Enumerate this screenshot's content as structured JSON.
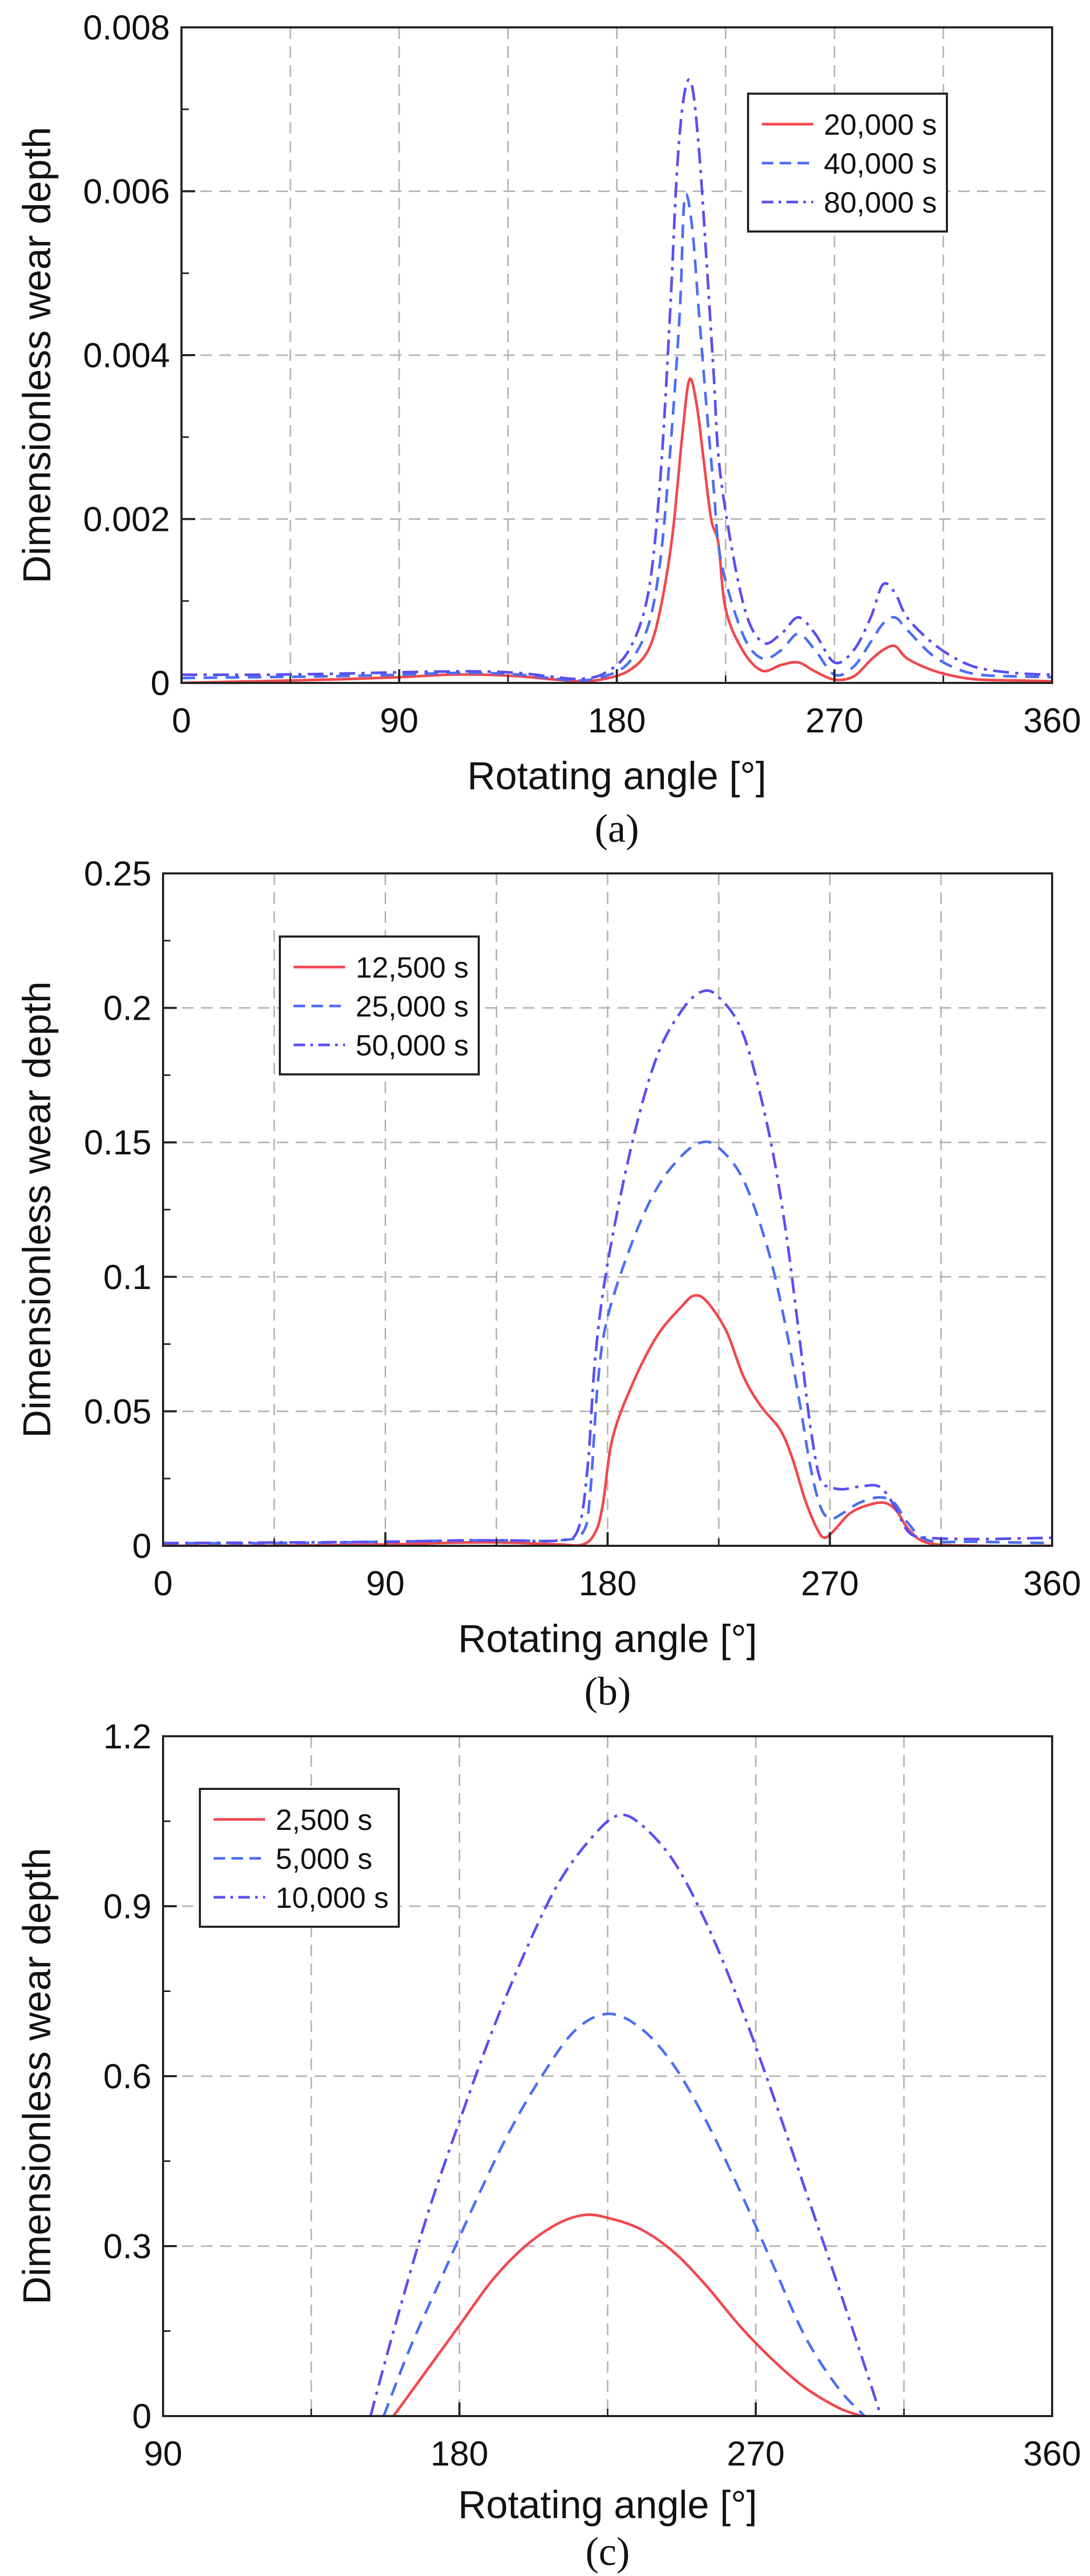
{
  "colors": {
    "series_red": "#f0484e",
    "series_blue": "#4b6ef2",
    "series_violet": "#5a4ef0",
    "grid": "#b5b5b5",
    "axis": "#222222",
    "text": "#111111"
  },
  "chart_data": [
    {
      "type": "line",
      "panel_label": "(a)",
      "xlabel": "Rotating angle [°]",
      "ylabel": "Dimensionless wear depth",
      "xlim": [
        0,
        360
      ],
      "ylim": [
        0,
        0.008
      ],
      "xticks": [
        0,
        90,
        180,
        270,
        360
      ],
      "xtick_labels": [
        "0",
        "90",
        "180",
        "270",
        "360"
      ],
      "yticks": [
        0,
        0.002,
        0.004,
        0.006,
        0.008
      ],
      "ytick_labels": [
        "0",
        "0.002",
        "0.004",
        "0.006",
        "0.008"
      ],
      "xgrid": [
        45,
        90,
        135,
        180,
        225,
        270,
        315
      ],
      "legend_position": "top-right",
      "series": [
        {
          "name": "20,000 s",
          "style": "solid",
          "color": "#f0484e",
          "x": [
            0,
            30,
            60,
            90,
            110,
            125,
            140,
            155,
            165,
            175,
            185,
            193,
            198,
            203,
            207,
            210,
            213,
            216,
            219,
            222,
            225,
            232,
            240,
            248,
            255,
            262,
            270,
            278,
            285,
            290,
            295,
            300,
            310,
            320,
            330,
            345,
            360
          ],
          "y": [
            0,
            2e-05,
            4e-05,
            7e-05,
            0.0001,
            0.0001,
            8e-05,
            4e-05,
            2e-05,
            5e-05,
            0.00015,
            0.0004,
            0.0009,
            0.0018,
            0.003,
            0.0037,
            0.0034,
            0.0027,
            0.002,
            0.0017,
            0.0009,
            0.0004,
            0.00015,
            0.00022,
            0.00025,
            0.00014,
            4e-05,
            8e-05,
            0.00028,
            0.0004,
            0.00045,
            0.0003,
            0.00016,
            8e-05,
            4e-05,
            3e-05,
            2e-05
          ]
        },
        {
          "name": "40,000 s",
          "style": "dashed",
          "color": "#4b6ef2",
          "x": [
            0,
            30,
            60,
            90,
            110,
            125,
            140,
            155,
            165,
            175,
            185,
            193,
            198,
            202,
            206,
            208,
            211,
            214,
            217,
            220,
            223,
            232,
            240,
            248,
            255,
            262,
            270,
            278,
            285,
            290,
            295,
            300,
            310,
            320,
            330,
            345,
            360
          ],
          "y": [
            6e-05,
            7e-05,
            8e-05,
            0.0001,
            0.00012,
            0.00012,
            0.0001,
            5e-05,
            3e-05,
            8e-05,
            0.00025,
            0.0007,
            0.0015,
            0.0028,
            0.0045,
            0.0059,
            0.0056,
            0.0045,
            0.0034,
            0.0024,
            0.0015,
            0.0006,
            0.0003,
            0.0004,
            0.0006,
            0.0004,
            0.0001,
            0.0002,
            0.0005,
            0.00072,
            0.0008,
            0.00065,
            0.00035,
            0.00018,
            0.0001,
            8e-05,
            7e-05
          ]
        },
        {
          "name": "80,000 s",
          "style": "dashdot",
          "color": "#5a4ef0",
          "x": [
            0,
            30,
            60,
            90,
            110,
            125,
            140,
            155,
            165,
            175,
            185,
            193,
            198,
            202,
            205,
            208,
            211,
            214,
            217,
            220,
            223,
            232,
            240,
            248,
            255,
            262,
            270,
            278,
            285,
            290,
            295,
            300,
            310,
            320,
            330,
            345,
            360
          ],
          "y": [
            0.0001,
            0.0001,
            0.00011,
            0.00013,
            0.00014,
            0.00014,
            0.00012,
            7e-05,
            5e-05,
            0.00012,
            0.0004,
            0.0011,
            0.0025,
            0.0045,
            0.0063,
            0.0072,
            0.0073,
            0.0065,
            0.0052,
            0.0038,
            0.0025,
            0.001,
            0.0005,
            0.0006,
            0.0008,
            0.0006,
            0.00025,
            0.0004,
            0.0008,
            0.0012,
            0.0011,
            0.0008,
            0.0005,
            0.0003,
            0.00018,
            0.00012,
            0.0001
          ]
        }
      ]
    },
    {
      "type": "line",
      "panel_label": "(b)",
      "xlabel": "Rotating angle [°]",
      "ylabel": "Dimensionless wear depth",
      "xlim": [
        0,
        360
      ],
      "ylim": [
        0,
        0.25
      ],
      "xticks": [
        0,
        90,
        180,
        270,
        360
      ],
      "xtick_labels": [
        "0",
        "90",
        "180",
        "270",
        "360"
      ],
      "yticks": [
        0,
        0.05,
        0.1,
        0.15,
        0.2,
        0.25
      ],
      "ytick_labels": [
        "0",
        "0.05",
        "0.1",
        "0.15",
        "0.2",
        "0.25"
      ],
      "xgrid": [
        45,
        90,
        135,
        180,
        225,
        270,
        315
      ],
      "legend_position": "top-left",
      "series": [
        {
          "name": "12,500 s",
          "style": "solid",
          "color": "#f0484e",
          "x": [
            0,
            40,
            90,
            120,
            140,
            160,
            170,
            175,
            178,
            182,
            190,
            200,
            210,
            215,
            220,
            228,
            235,
            242,
            250,
            255,
            260,
            265,
            268,
            272,
            278,
            285,
            292,
            297,
            302,
            310,
            330,
            360
          ],
          "y": [
            0,
            0,
            0.0005,
            0.0012,
            0.0012,
            0.0005,
            0.0005,
            0.005,
            0.015,
            0.04,
            0.06,
            0.078,
            0.089,
            0.093,
            0.091,
            0.08,
            0.063,
            0.052,
            0.043,
            0.032,
            0.017,
            0.006,
            0.003,
            0.006,
            0.012,
            0.015,
            0.016,
            0.013,
            0.006,
            0.001,
            0,
            0
          ]
        },
        {
          "name": "25,000 s",
          "style": "dashed",
          "color": "#4b6ef2",
          "x": [
            0,
            40,
            90,
            120,
            140,
            160,
            170,
            173,
            176,
            180,
            190,
            200,
            210,
            218,
            225,
            235,
            245,
            252,
            258,
            262,
            266,
            270,
            275,
            282,
            290,
            296,
            302,
            310,
            330,
            360
          ],
          "y": [
            0.001,
            0.001,
            0.0015,
            0.002,
            0.002,
            0.002,
            0.005,
            0.02,
            0.06,
            0.085,
            0.113,
            0.133,
            0.145,
            0.15,
            0.148,
            0.136,
            0.11,
            0.082,
            0.052,
            0.03,
            0.015,
            0.01,
            0.012,
            0.016,
            0.018,
            0.016,
            0.008,
            0.002,
            0.0015,
            0.001
          ]
        },
        {
          "name": "50,000 s",
          "style": "dashdot",
          "color": "#5a4ef0",
          "x": [
            0,
            40,
            90,
            120,
            140,
            160,
            168,
            172,
            175,
            180,
            190,
            200,
            210,
            218,
            225,
            235,
            245,
            252,
            258,
            262,
            266,
            270,
            275,
            282,
            290,
            296,
            302,
            310,
            330,
            360
          ],
          "y": [
            0.001,
            0.0012,
            0.0015,
            0.002,
            0.002,
            0.002,
            0.006,
            0.03,
            0.07,
            0.105,
            0.15,
            0.182,
            0.199,
            0.206,
            0.204,
            0.19,
            0.155,
            0.118,
            0.075,
            0.045,
            0.025,
            0.022,
            0.021,
            0.022,
            0.022,
            0.015,
            0.005,
            0.003,
            0.0025,
            0.003
          ]
        }
      ]
    },
    {
      "type": "line",
      "panel_label": "(c)",
      "xlabel": "Rotating angle [°]",
      "ylabel": "Dimensionless wear depth",
      "xlim": [
        90,
        360
      ],
      "ylim": [
        0,
        1.2
      ],
      "xticks": [
        90,
        180,
        270,
        360
      ],
      "xtick_labels": [
        "90",
        "180",
        "270",
        "360"
      ],
      "yticks": [
        0,
        0.3,
        0.6,
        0.9,
        1.2
      ],
      "ytick_labels": [
        "0",
        "0.3",
        "0.6",
        "0.9",
        "1.2"
      ],
      "xgrid": [
        135,
        180,
        225,
        270,
        315
      ],
      "legend_position": "top-left",
      "series": [
        {
          "name": "2,500 s",
          "style": "solid",
          "color": "#f0484e",
          "x": [
            160,
            170,
            180,
            190,
            200,
            210,
            218,
            225,
            235,
            245,
            255,
            265,
            275,
            285,
            295,
            302
          ],
          "y": [
            0,
            0.08,
            0.16,
            0.24,
            0.3,
            0.34,
            0.355,
            0.35,
            0.33,
            0.29,
            0.23,
            0.16,
            0.1,
            0.05,
            0.015,
            0
          ]
        },
        {
          "name": "5,000 s",
          "style": "dashed",
          "color": "#4b6ef2",
          "x": [
            157,
            165,
            175,
            185,
            195,
            205,
            215,
            225,
            235,
            245,
            255,
            265,
            275,
            285,
            295,
            303
          ],
          "y": [
            0,
            0.12,
            0.25,
            0.38,
            0.5,
            0.6,
            0.68,
            0.71,
            0.685,
            0.62,
            0.52,
            0.4,
            0.27,
            0.14,
            0.05,
            0
          ]
        },
        {
          "name": "10,000 s",
          "style": "dashdot",
          "color": "#5a4ef0",
          "x": [
            153,
            160,
            170,
            180,
            190,
            200,
            210,
            220,
            228,
            235,
            245,
            255,
            265,
            275,
            285,
            295,
            303,
            308
          ],
          "y": [
            0,
            0.15,
            0.35,
            0.52,
            0.68,
            0.82,
            0.94,
            1.02,
            1.06,
            1.045,
            0.98,
            0.87,
            0.73,
            0.57,
            0.4,
            0.23,
            0.09,
            0
          ]
        }
      ]
    }
  ]
}
